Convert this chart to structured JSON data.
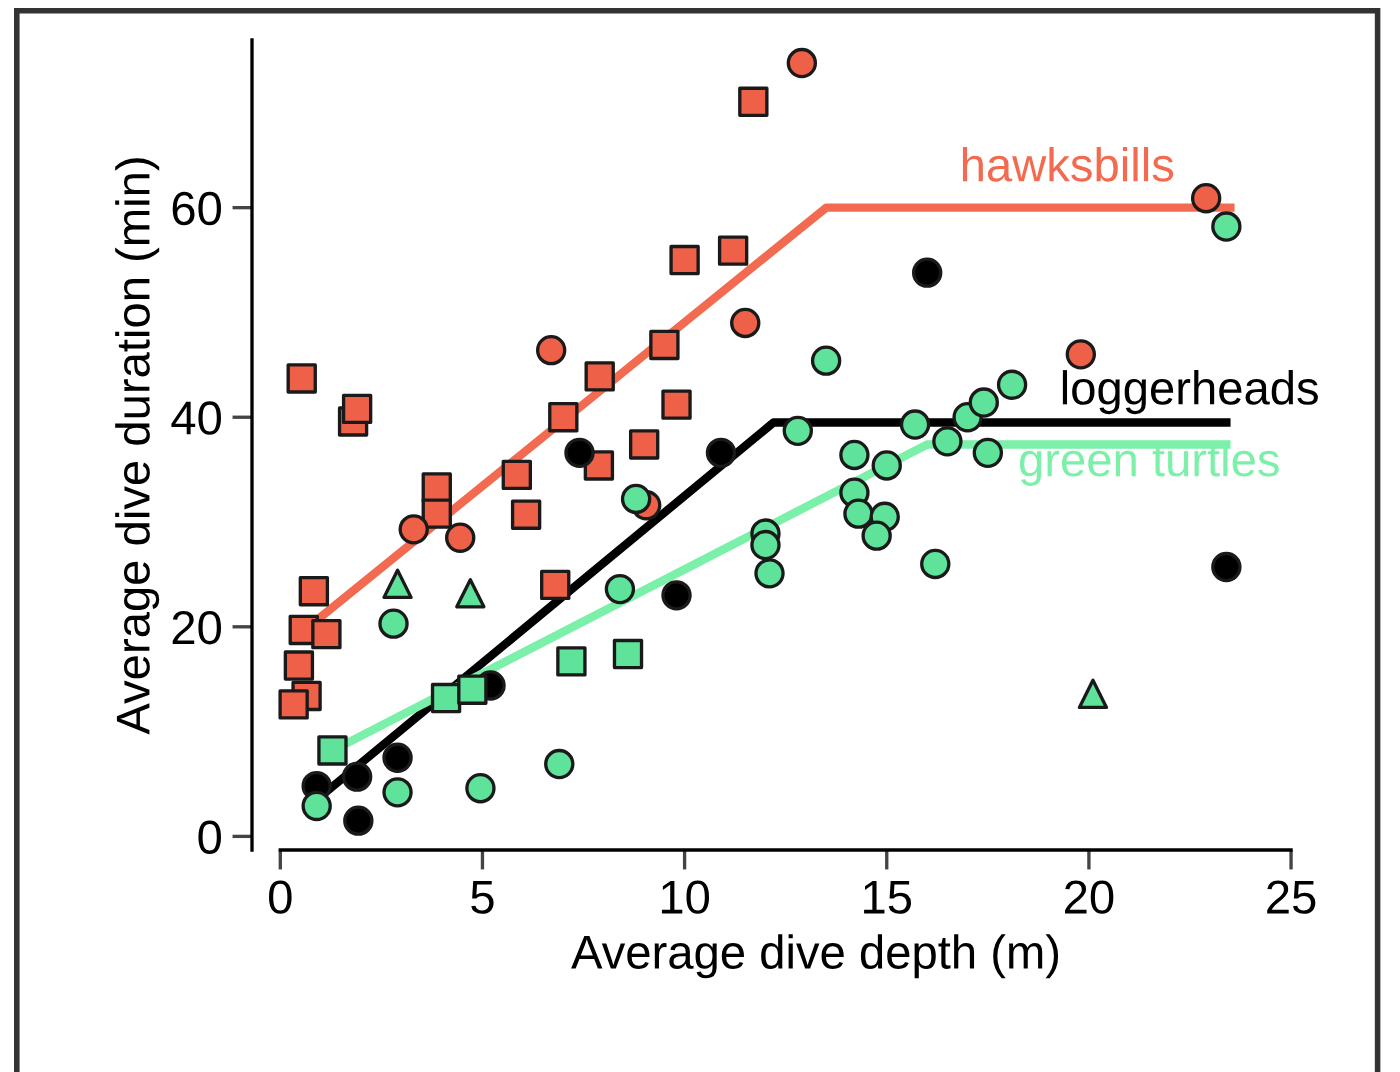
{
  "chart_data": {
    "type": "scatter",
    "xlabel": "Average dive depth (m)",
    "ylabel": "Average dive duration (min)",
    "xlim": [
      -0.7,
      27.2
    ],
    "ylim": [
      -1.3,
      76
    ],
    "xticks": [
      0,
      5,
      10,
      15,
      20,
      25
    ],
    "yticks": [
      0,
      20,
      40,
      60
    ],
    "grid": false,
    "legend": false,
    "series": [
      {
        "marker": "square",
        "color": "#ee6048",
        "x": [
          0.53,
          1.8,
          1.9,
          0.83,
          0.58,
          1.14,
          0.46,
          0.65,
          0.33,
          3.87,
          3.87,
          5.85,
          6.08,
          7.0,
          7.9,
          7.88,
          9.0,
          9.5,
          9.8,
          10.0,
          11.2,
          6.8,
          11.7
        ],
        "values": [
          43.7,
          39.6,
          40.8,
          23.4,
          19.7,
          19.3,
          16.3,
          13.4,
          12.6,
          33.3,
          30.8,
          34.5,
          30.7,
          40.0,
          43.9,
          35.4,
          37.4,
          46.9,
          41.2,
          55.0,
          55.9,
          24.0,
          70.1
        ]
      },
      {
        "marker": "circle",
        "color": "#ee6048",
        "x": [
          3.3,
          4.45,
          6.7,
          9.05,
          11.5,
          12.9,
          22.9,
          19.8
        ],
        "values": [
          29.3,
          28.5,
          46.4,
          31.6,
          49.0,
          73.8,
          60.9,
          46.0
        ]
      },
      {
        "marker": "circle",
        "color": "#000000",
        "x": [
          7.4,
          10.9,
          9.8,
          5.2,
          2.9,
          0.9,
          1.9,
          1.93,
          16.0,
          23.4
        ],
        "values": [
          36.6,
          36.6,
          23.0,
          14.4,
          7.5,
          4.8,
          5.7,
          1.5,
          53.8,
          25.7
        ]
      },
      {
        "marker": "triangle",
        "color": "#5fe39a",
        "x": [
          2.9,
          4.7,
          20.1
        ],
        "values": [
          24.1,
          23.2,
          13.6
        ]
      },
      {
        "marker": "square",
        "color": "#5fe39a",
        "x": [
          1.29,
          4.1,
          4.75,
          7.2,
          8.6
        ],
        "values": [
          8.2,
          13.2,
          14.0,
          16.7,
          17.4
        ]
      },
      {
        "marker": "circle",
        "color": "#5fe39a",
        "x": [
          0.9,
          2.9,
          4.95,
          6.9,
          2.8,
          8.4,
          8.8,
          12.0,
          12.0,
          12.1,
          13.5,
          12.8,
          14.2,
          15.0,
          14.2,
          14.3,
          14.95,
          14.75,
          16.2,
          15.7,
          16.5,
          17.0,
          17.4,
          17.5,
          18.1,
          23.4
        ],
        "values": [
          2.9,
          4.2,
          4.6,
          6.9,
          20.3,
          23.6,
          32.2,
          28.9,
          27.8,
          25.1,
          45.4,
          38.7,
          36.4,
          35.4,
          32.8,
          30.8,
          30.5,
          28.7,
          26.0,
          39.3,
          37.7,
          40.0,
          41.4,
          36.6,
          43.1,
          58.2
        ]
      },
      {
        "type": "line",
        "name": "hawksbills",
        "color": "#f26a4f",
        "x": [
          0.7,
          13.5,
          23.5
        ],
        "values": [
          20,
          60,
          60
        ]
      },
      {
        "type": "line",
        "name": "loggerheads",
        "color": "#000000",
        "x": [
          0.9,
          12.2,
          23.4
        ],
        "values": [
          3.5,
          39.5,
          39.5
        ]
      },
      {
        "type": "line",
        "name": "green turtles",
        "color": "#7af0a8",
        "x": [
          1.6,
          16.0,
          23.4
        ],
        "values": [
          8.8,
          37.4,
          37.4
        ]
      }
    ]
  }
}
